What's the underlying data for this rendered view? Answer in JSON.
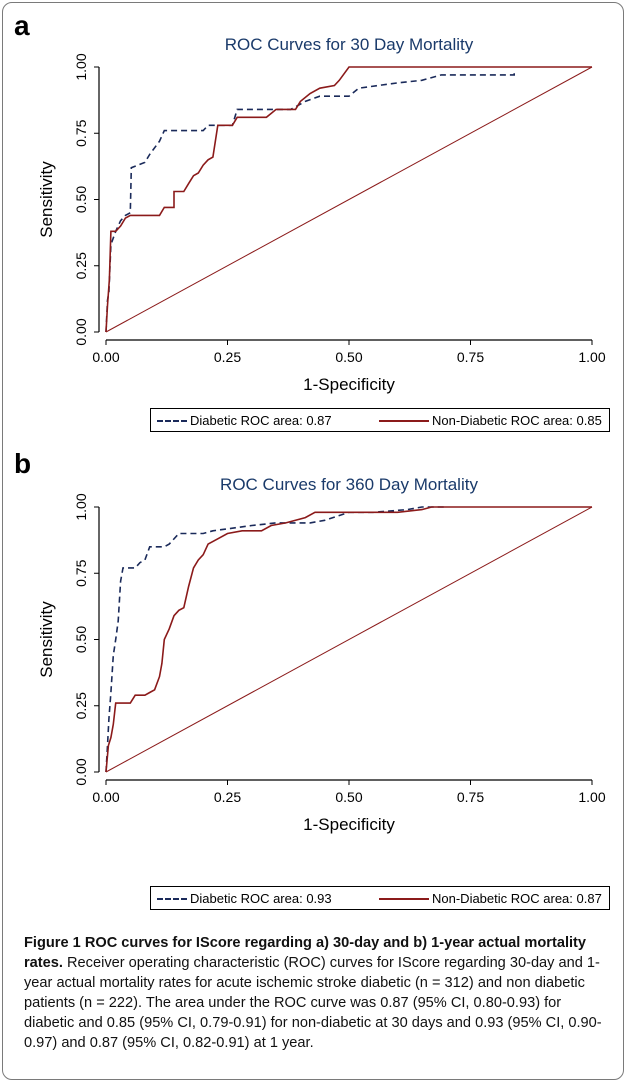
{
  "panels": [
    {
      "letter": "a",
      "legend": {
        "diabetic": "Diabetic ROC area: 0.87",
        "nondiabetic": "Non-Diabetic ROC area: 0.85"
      }
    },
    {
      "letter": "b",
      "legend": {
        "diabetic": "Diabetic ROC area: 0.93",
        "nondiabetic": "Non-Diabetic ROC area: 0.87"
      }
    }
  ],
  "caption": {
    "bold": "Figure 1 ROC curves for IScore regarding a) 30-day and b) 1-year actual mortality rates.",
    "text": " Receiver operating characteristic (ROC) curves for IScore regarding 30-day and 1-year actual mortality rates for acute ischemic stroke diabetic (n = 312) and non diabetic patients (n = 222). The area under the ROC curve was 0.87 (95% CI, 0.80-0.93) for diabetic and 0.85 (95% CI, 0.79-0.91) for non-diabetic at 30 days and 0.93 (95% CI, 0.90-0.97) and 0.87 (95% CI, 0.82-0.91) at 1 year."
  },
  "colors": {
    "diabetic": "#1a2a5a",
    "nondiabetic": "#8b1a1a",
    "title": "#1a3a6a",
    "reference": "#8b1a1a"
  },
  "chart_data": [
    {
      "type": "line",
      "title": "ROC Curves for 30 Day Mortality",
      "xlabel": "1-Specificity",
      "ylabel": "Sensitivity",
      "xlim": [
        0,
        1
      ],
      "ylim": [
        0,
        1
      ],
      "xticks": [
        "0.00",
        "0.25",
        "0.50",
        "0.75",
        "1.00"
      ],
      "yticks": [
        "0.00",
        "0.25",
        "0.50",
        "0.75",
        "1.00"
      ],
      "grid": false,
      "legend_position": "bottom",
      "series": [
        {
          "name": "Diabetic ROC area: 0.87",
          "style": "dashed",
          "points": [
            [
              0,
              0
            ],
            [
              0.003,
              0.12
            ],
            [
              0.006,
              0.15
            ],
            [
              0.01,
              0.33
            ],
            [
              0.02,
              0.38
            ],
            [
              0.03,
              0.42
            ],
            [
              0.04,
              0.44
            ],
            [
              0.05,
              0.45
            ],
            [
              0.052,
              0.62
            ],
            [
              0.08,
              0.64
            ],
            [
              0.09,
              0.67
            ],
            [
              0.11,
              0.72
            ],
            [
              0.12,
              0.76
            ],
            [
              0.2,
              0.76
            ],
            [
              0.21,
              0.78
            ],
            [
              0.26,
              0.78
            ],
            [
              0.27,
              0.84
            ],
            [
              0.38,
              0.84
            ],
            [
              0.41,
              0.87
            ],
            [
              0.44,
              0.89
            ],
            [
              0.5,
              0.89
            ],
            [
              0.52,
              0.92
            ],
            [
              0.56,
              0.93
            ],
            [
              0.6,
              0.94
            ],
            [
              0.65,
              0.95
            ],
            [
              0.69,
              0.97
            ],
            [
              0.84,
              0.97
            ],
            [
              0.84,
              0.98
            ]
          ]
        },
        {
          "name": "Non-Diabetic ROC area: 0.85",
          "style": "solid",
          "points": [
            [
              0,
              0
            ],
            [
              0.003,
              0.1
            ],
            [
              0.007,
              0.2
            ],
            [
              0.01,
              0.38
            ],
            [
              0.02,
              0.38
            ],
            [
              0.03,
              0.4
            ],
            [
              0.04,
              0.43
            ],
            [
              0.05,
              0.44
            ],
            [
              0.11,
              0.44
            ],
            [
              0.12,
              0.47
            ],
            [
              0.14,
              0.47
            ],
            [
              0.14,
              0.53
            ],
            [
              0.16,
              0.53
            ],
            [
              0.17,
              0.56
            ],
            [
              0.18,
              0.59
            ],
            [
              0.19,
              0.6
            ],
            [
              0.2,
              0.63
            ],
            [
              0.21,
              0.65
            ],
            [
              0.22,
              0.66
            ],
            [
              0.23,
              0.78
            ],
            [
              0.24,
              0.78
            ],
            [
              0.26,
              0.78
            ],
            [
              0.27,
              0.81
            ],
            [
              0.33,
              0.81
            ],
            [
              0.35,
              0.84
            ],
            [
              0.39,
              0.84
            ],
            [
              0.4,
              0.87
            ],
            [
              0.42,
              0.9
            ],
            [
              0.44,
              0.92
            ],
            [
              0.47,
              0.93
            ],
            [
              0.48,
              0.95
            ],
            [
              0.5,
              1.0
            ],
            [
              1.0,
              1.0
            ]
          ]
        },
        {
          "name": "",
          "style": "reference",
          "points": [
            [
              0,
              0
            ],
            [
              1,
              1
            ]
          ]
        }
      ]
    },
    {
      "type": "line",
      "title": "ROC Curves for 360 Day Mortality",
      "xlabel": "1-Specificity",
      "ylabel": "Sensitivity",
      "xlim": [
        0,
        1
      ],
      "ylim": [
        0,
        1
      ],
      "xticks": [
        "0.00",
        "0.25",
        "0.50",
        "0.75",
        "1.00"
      ],
      "yticks": [
        "0.00",
        "0.25",
        "0.50",
        "0.75",
        "1.00"
      ],
      "grid": false,
      "legend_position": "bottom",
      "series": [
        {
          "name": "Diabetic ROC area: 0.93",
          "style": "dashed",
          "points": [
            [
              0,
              0
            ],
            [
              0.003,
              0.1
            ],
            [
              0.006,
              0.2
            ],
            [
              0.01,
              0.3
            ],
            [
              0.015,
              0.44
            ],
            [
              0.02,
              0.5
            ],
            [
              0.025,
              0.57
            ],
            [
              0.03,
              0.72
            ],
            [
              0.035,
              0.77
            ],
            [
              0.06,
              0.77
            ],
            [
              0.07,
              0.79
            ],
            [
              0.08,
              0.8
            ],
            [
              0.09,
              0.85
            ],
            [
              0.12,
              0.85
            ],
            [
              0.13,
              0.86
            ],
            [
              0.15,
              0.9
            ],
            [
              0.2,
              0.9
            ],
            [
              0.22,
              0.91
            ],
            [
              0.26,
              0.92
            ],
            [
              0.3,
              0.93
            ],
            [
              0.35,
              0.94
            ],
            [
              0.42,
              0.94
            ],
            [
              0.45,
              0.95
            ],
            [
              0.5,
              0.98
            ],
            [
              0.55,
              0.98
            ],
            [
              0.62,
              0.99
            ],
            [
              0.65,
              1.0
            ],
            [
              0.7,
              1.0
            ]
          ]
        },
        {
          "name": "Non-Diabetic ROC area: 0.87",
          "style": "solid",
          "points": [
            [
              0,
              0
            ],
            [
              0.005,
              0.1
            ],
            [
              0.01,
              0.13
            ],
            [
              0.015,
              0.18
            ],
            [
              0.02,
              0.26
            ],
            [
              0.05,
              0.26
            ],
            [
              0.06,
              0.29
            ],
            [
              0.08,
              0.29
            ],
            [
              0.09,
              0.3
            ],
            [
              0.1,
              0.31
            ],
            [
              0.11,
              0.36
            ],
            [
              0.115,
              0.41
            ],
            [
              0.12,
              0.5
            ],
            [
              0.13,
              0.54
            ],
            [
              0.14,
              0.59
            ],
            [
              0.15,
              0.61
            ],
            [
              0.16,
              0.62
            ],
            [
              0.17,
              0.7
            ],
            [
              0.18,
              0.77
            ],
            [
              0.19,
              0.8
            ],
            [
              0.2,
              0.82
            ],
            [
              0.21,
              0.86
            ],
            [
              0.23,
              0.88
            ],
            [
              0.25,
              0.9
            ],
            [
              0.28,
              0.91
            ],
            [
              0.32,
              0.91
            ],
            [
              0.34,
              0.93
            ],
            [
              0.37,
              0.94
            ],
            [
              0.41,
              0.96
            ],
            [
              0.43,
              0.98
            ],
            [
              0.6,
              0.98
            ],
            [
              0.65,
              0.99
            ],
            [
              0.67,
              1.0
            ],
            [
              1.0,
              1.0
            ]
          ]
        },
        {
          "name": "",
          "style": "reference",
          "points": [
            [
              0,
              0
            ],
            [
              1,
              1
            ]
          ]
        }
      ]
    }
  ]
}
